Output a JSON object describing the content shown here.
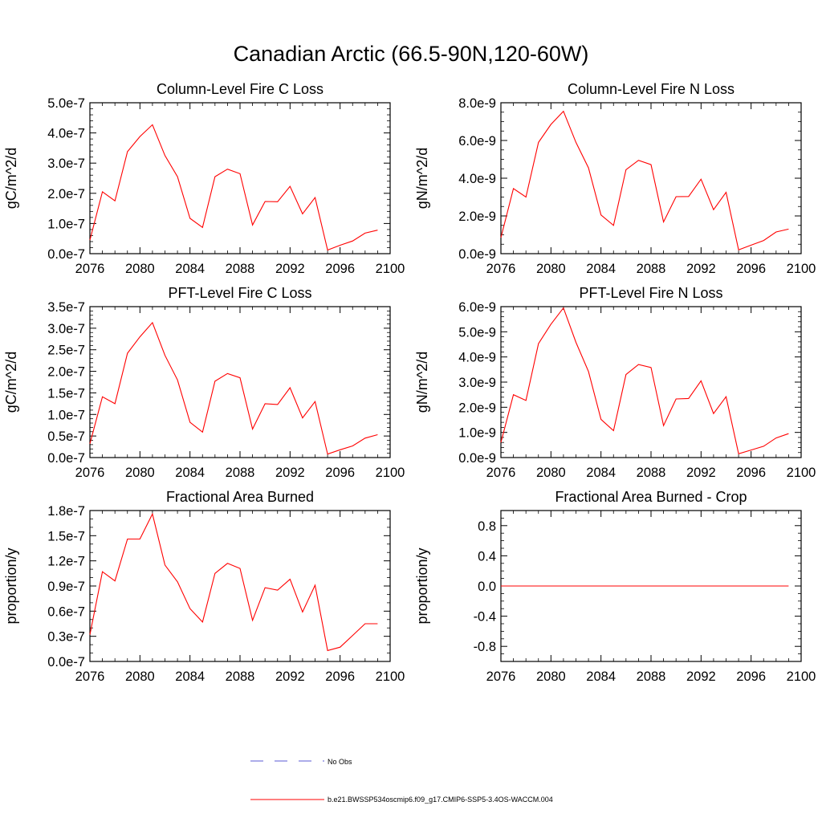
{
  "figure": {
    "title": "Canadian Arctic (66.5-90N,120-60W)"
  },
  "legend": {
    "obs_label": "No Obs",
    "obs_color": "#5a5ad6",
    "model_label": "b.e21.BWSSP534oscmip6.f09_g17.CMIP6-SSP5-3.4OS-WACCM.004",
    "model_color": "#ff0000"
  },
  "chart_data": [
    {
      "type": "line",
      "title": "Column-Level Fire C Loss",
      "ylabel": "gC/m^2/d",
      "xlim": [
        2076,
        2100
      ],
      "ylim": [
        0,
        5e-07
      ],
      "xticks": [
        2076,
        2080,
        2084,
        2088,
        2092,
        2096,
        2100
      ],
      "yticks": [
        0,
        1e-07,
        2e-07,
        3e-07,
        4e-07,
        5e-07
      ],
      "ytick_labels": [
        "0.0e-7",
        "1.0e-7",
        "2.0e-7",
        "3.0e-7",
        "4.0e-7",
        "5.0e-7"
      ],
      "yminor": 5,
      "x": [
        2076,
        2077,
        2078,
        2079,
        2080,
        2081,
        2082,
        2083,
        2084,
        2085,
        2086,
        2087,
        2088,
        2089,
        2090,
        2091,
        2092,
        2093,
        2094,
        2095,
        2096,
        2097,
        2098,
        2099
      ],
      "series": [
        {
          "values": [
            4.5e-08,
            2.05e-07,
            1.75e-07,
            3.38e-07,
            3.88e-07,
            4.27e-07,
            3.25e-07,
            2.55e-07,
            1.17e-07,
            8.7e-08,
            2.55e-07,
            2.8e-07,
            2.65e-07,
            9.5e-08,
            1.73e-07,
            1.72e-07,
            2.23e-07,
            1.32e-07,
            1.86e-07,
            1.2e-08,
            2.8e-08,
            4.2e-08,
            6.8e-08,
            7.8e-08
          ]
        }
      ]
    },
    {
      "type": "line",
      "title": "Column-Level Fire N Loss",
      "ylabel": "gN/m^2/d",
      "xlim": [
        2076,
        2100
      ],
      "ylim": [
        0,
        8e-09
      ],
      "xticks": [
        2076,
        2080,
        2084,
        2088,
        2092,
        2096,
        2100
      ],
      "yticks": [
        0,
        2e-09,
        4e-09,
        6e-09,
        8e-09
      ],
      "ytick_labels": [
        "0.0e-9",
        "2.0e-9",
        "4.0e-9",
        "6.0e-9",
        "8.0e-9"
      ],
      "yminor": 4,
      "x": [
        2076,
        2077,
        2078,
        2079,
        2080,
        2081,
        2082,
        2083,
        2084,
        2085,
        2086,
        2087,
        2088,
        2089,
        2090,
        2091,
        2092,
        2093,
        2094,
        2095,
        2096,
        2097,
        2098,
        2099
      ],
      "series": [
        {
          "values": [
            8.5e-10,
            3.45e-09,
            3e-09,
            5.9e-09,
            6.85e-09,
            7.55e-09,
            5.9e-09,
            4.55e-09,
            2.05e-09,
            1.5e-09,
            4.45e-09,
            4.95e-09,
            4.72e-09,
            1.68e-09,
            3.02e-09,
            3.03e-09,
            3.95e-09,
            2.33e-09,
            3.25e-09,
            2e-10,
            4.5e-10,
            7e-10,
            1.15e-09,
            1.3e-09
          ]
        }
      ]
    },
    {
      "type": "line",
      "title": "PFT-Level Fire C Loss",
      "ylabel": "gC/m^2/d",
      "xlim": [
        2076,
        2100
      ],
      "ylim": [
        0,
        3.5e-07
      ],
      "xticks": [
        2076,
        2080,
        2084,
        2088,
        2092,
        2096,
        2100
      ],
      "yticks": [
        0,
        5e-08,
        1e-07,
        1.5e-07,
        2e-07,
        2.5e-07,
        3e-07,
        3.5e-07
      ],
      "ytick_labels": [
        "0.0e-7",
        "0.5e-7",
        "1.0e-7",
        "1.5e-7",
        "2.0e-7",
        "2.5e-7",
        "3.0e-7",
        "3.5e-7"
      ],
      "yminor": 5,
      "x": [
        2076,
        2077,
        2078,
        2079,
        2080,
        2081,
        2082,
        2083,
        2084,
        2085,
        2086,
        2087,
        2088,
        2089,
        2090,
        2091,
        2092,
        2093,
        2094,
        2095,
        2096,
        2097,
        2098,
        2099
      ],
      "series": [
        {
          "values": [
            3.2e-08,
            1.41e-07,
            1.25e-07,
            2.42e-07,
            2.8e-07,
            3.13e-07,
            2.37e-07,
            1.8e-07,
            8.2e-08,
            5.9e-08,
            1.77e-07,
            1.95e-07,
            1.85e-07,
            6.6e-08,
            1.25e-07,
            1.23e-07,
            1.62e-07,
            9.2e-08,
            1.3e-07,
            8e-09,
            1.8e-08,
            2.7e-08,
            4.5e-08,
            5.3e-08
          ]
        }
      ]
    },
    {
      "type": "line",
      "title": "PFT-Level Fire N Loss",
      "ylabel": "gN/m^2/d",
      "xlim": [
        2076,
        2100
      ],
      "ylim": [
        0,
        6e-09
      ],
      "xticks": [
        2076,
        2080,
        2084,
        2088,
        2092,
        2096,
        2100
      ],
      "yticks": [
        0,
        1e-09,
        2e-09,
        3e-09,
        4e-09,
        5e-09,
        6e-09
      ],
      "ytick_labels": [
        "0.0e-9",
        "1.0e-9",
        "2.0e-9",
        "3.0e-9",
        "4.0e-9",
        "5.0e-9",
        "6.0e-9"
      ],
      "yminor": 5,
      "x": [
        2076,
        2077,
        2078,
        2079,
        2080,
        2081,
        2082,
        2083,
        2084,
        2085,
        2086,
        2087,
        2088,
        2089,
        2090,
        2091,
        2092,
        2093,
        2094,
        2095,
        2096,
        2097,
        2098,
        2099
      ],
      "series": [
        {
          "values": [
            6e-10,
            2.5e-09,
            2.27e-09,
            4.53e-09,
            5.3e-09,
            5.95e-09,
            4.58e-09,
            3.42e-09,
            1.52e-09,
            1.07e-09,
            3.3e-09,
            3.7e-09,
            3.58e-09,
            1.27e-09,
            2.33e-09,
            2.35e-09,
            3.05e-09,
            1.75e-09,
            2.42e-09,
            1.5e-10,
            3e-10,
            4.5e-10,
            7.8e-10,
            9.5e-10
          ]
        }
      ]
    },
    {
      "type": "line",
      "title": "Fractional Area Burned",
      "ylabel": "proportion/y",
      "xlim": [
        2076,
        2100
      ],
      "ylim": [
        0,
        1.8e-07
      ],
      "xticks": [
        2076,
        2080,
        2084,
        2088,
        2092,
        2096,
        2100
      ],
      "yticks": [
        0,
        3e-08,
        6e-08,
        9e-08,
        1.2e-07,
        1.5e-07,
        1.8e-07
      ],
      "ytick_labels": [
        "0.0e-7",
        "0.3e-7",
        "0.6e-7",
        "0.9e-7",
        "1.2e-7",
        "1.5e-7",
        "1.8e-7"
      ],
      "yminor": 3,
      "x": [
        2076,
        2077,
        2078,
        2079,
        2080,
        2081,
        2082,
        2083,
        2084,
        2085,
        2086,
        2087,
        2088,
        2089,
        2090,
        2091,
        2092,
        2093,
        2094,
        2095,
        2096,
        2097,
        2098,
        2099
      ],
      "series": [
        {
          "values": [
            3.2e-08,
            1.07e-07,
            9.6e-08,
            1.46e-07,
            1.46e-07,
            1.76e-07,
            1.15e-07,
            9.5e-08,
            6.3e-08,
            4.7e-08,
            1.05e-07,
            1.17e-07,
            1.11e-07,
            4.9e-08,
            8.8e-08,
            8.5e-08,
            9.8e-08,
            5.9e-08,
            9.1e-08,
            1.3e-08,
            1.7e-08,
            3.1e-08,
            4.5e-08,
            4.5e-08
          ]
        }
      ]
    },
    {
      "type": "line",
      "title": "Fractional Area Burned - Crop",
      "ylabel": "proportion/y",
      "xlim": [
        2076,
        2100
      ],
      "ylim": [
        -1.0,
        1.0
      ],
      "xticks": [
        2076,
        2080,
        2084,
        2088,
        2092,
        2096,
        2100
      ],
      "yticks": [
        -0.8,
        -0.4,
        0.0,
        0.4,
        0.8
      ],
      "ytick_labels": [
        "-0.8",
        "-0.4",
        "0.0",
        "0.4",
        "0.8"
      ],
      "yminor": 4,
      "x": [
        2076,
        2077,
        2078,
        2079,
        2080,
        2081,
        2082,
        2083,
        2084,
        2085,
        2086,
        2087,
        2088,
        2089,
        2090,
        2091,
        2092,
        2093,
        2094,
        2095,
        2096,
        2097,
        2098,
        2099
      ],
      "series": [
        {
          "values": [
            0,
            0,
            0,
            0,
            0,
            0,
            0,
            0,
            0,
            0,
            0,
            0,
            0,
            0,
            0,
            0,
            0,
            0,
            0,
            0,
            0,
            0,
            0,
            0
          ]
        }
      ]
    }
  ]
}
